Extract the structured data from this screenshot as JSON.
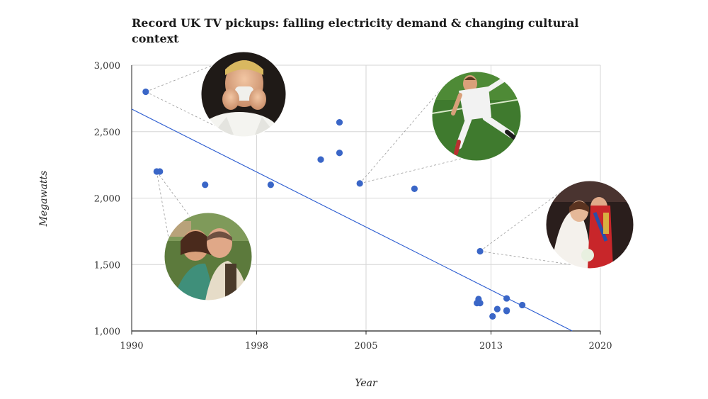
{
  "chart_data": {
    "type": "scatter",
    "title": "Record UK TV pickups: falling electricity demand & changing cultural context",
    "xlabel": "Year",
    "ylabel": "Megawatts",
    "xlim": [
      1990,
      2020
    ],
    "ylim": [
      1000,
      3000
    ],
    "xticks": [
      1990,
      1998,
      2005,
      2013,
      2020
    ],
    "yticks": [
      1000,
      1500,
      2000,
      2500,
      3000
    ],
    "x_tick_labels": [
      "1990",
      "1998",
      "2005",
      "2013",
      "2020"
    ],
    "y_tick_labels": [
      "1,000",
      "1,500",
      "2,000",
      "2,500",
      "3,000"
    ],
    "grid": true,
    "points": [
      {
        "x": 1990.9,
        "y": 2800
      },
      {
        "x": 1991.6,
        "y": 2200
      },
      {
        "x": 1991.8,
        "y": 2200
      },
      {
        "x": 1994.7,
        "y": 2100
      },
      {
        "x": 1998.9,
        "y": 2100
      },
      {
        "x": 2002.1,
        "y": 2290
      },
      {
        "x": 2003.3,
        "y": 2570
      },
      {
        "x": 2003.3,
        "y": 2340
      },
      {
        "x": 2004.6,
        "y": 2110
      },
      {
        "x": 2008.1,
        "y": 2070
      },
      {
        "x": 2012.3,
        "y": 1600
      },
      {
        "x": 2012.2,
        "y": 1240
      },
      {
        "x": 2012.1,
        "y": 1210
      },
      {
        "x": 2012.3,
        "y": 1210
      },
      {
        "x": 2013.1,
        "y": 1110
      },
      {
        "x": 2013.4,
        "y": 1165
      },
      {
        "x": 2014.0,
        "y": 1245
      },
      {
        "x": 2014.0,
        "y": 1155
      },
      {
        "x": 2014.0,
        "y": 1150
      },
      {
        "x": 2015.0,
        "y": 1195
      }
    ],
    "trendline": {
      "x": [
        1990,
        2018.2
      ],
      "y": [
        2670,
        1000
      ]
    },
    "colors": {
      "points": "#3a66c7",
      "trendline": "#2a5bd0",
      "grid": "#d6d6d6"
    },
    "photo_annotations": [
      {
        "name": "football-fan-photo",
        "point_index": 0
      },
      {
        "name": "couple-photo",
        "point_index": 1
      },
      {
        "name": "rugby-kicker-photo",
        "point_index": 8
      },
      {
        "name": "royal-wedding-photo",
        "point_index": 10
      }
    ]
  }
}
